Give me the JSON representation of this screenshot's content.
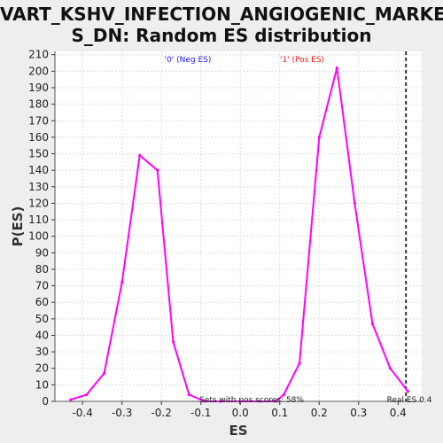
{
  "chart_data": {
    "type": "line",
    "title_line1": "VART_KSHV_INFECTION_ANGIOGENIC_MARKER",
    "title_line2": "S_DN: Random ES distribution",
    "xlabel": "ES",
    "ylabel": "P(ES)",
    "xlim": [
      -0.47,
      0.46
    ],
    "ylim": [
      0,
      212
    ],
    "x_ticks": [
      -0.4,
      -0.3,
      -0.2,
      -0.1,
      0.0,
      0.1,
      0.2,
      0.3,
      0.4
    ],
    "x_tick_labels": [
      "-0.4",
      "-0.3",
      "-0.2",
      "-0.1",
      "0.0",
      "0.1",
      "0.2",
      "0.3",
      "0.4"
    ],
    "y_ticks": [
      0,
      10,
      20,
      30,
      40,
      50,
      60,
      70,
      80,
      90,
      100,
      110,
      120,
      130,
      140,
      150,
      160,
      170,
      180,
      190,
      200,
      210
    ],
    "grid": true,
    "series": [
      {
        "color": "#ff00ff",
        "x": [
          -0.43,
          -0.39,
          -0.345,
          -0.3,
          -0.255,
          -0.21,
          -0.17,
          -0.13,
          -0.09,
          -0.05,
          0.0,
          0.05,
          0.09,
          0.11,
          0.15,
          0.2,
          0.245,
          0.29,
          0.335,
          0.38,
          0.425
        ],
        "y": [
          1,
          4,
          17,
          72,
          149,
          140,
          36,
          4,
          0,
          0,
          0,
          0,
          0,
          4,
          23,
          160,
          202,
          120,
          47,
          20,
          6
        ]
      }
    ],
    "real_es": {
      "x": 0.42,
      "color": "#333333",
      "label": "Real ES 0.4"
    },
    "annotations": {
      "neg": {
        "text": "'0' (Neg ES)",
        "color": "#1a1aff"
      },
      "pos": {
        "text": "'1' (Pos ES)",
        "color": "#ff1a1a"
      },
      "pos_scores": {
        "text": "Sets with pos scores: 58%",
        "color": "#222222"
      }
    }
  }
}
